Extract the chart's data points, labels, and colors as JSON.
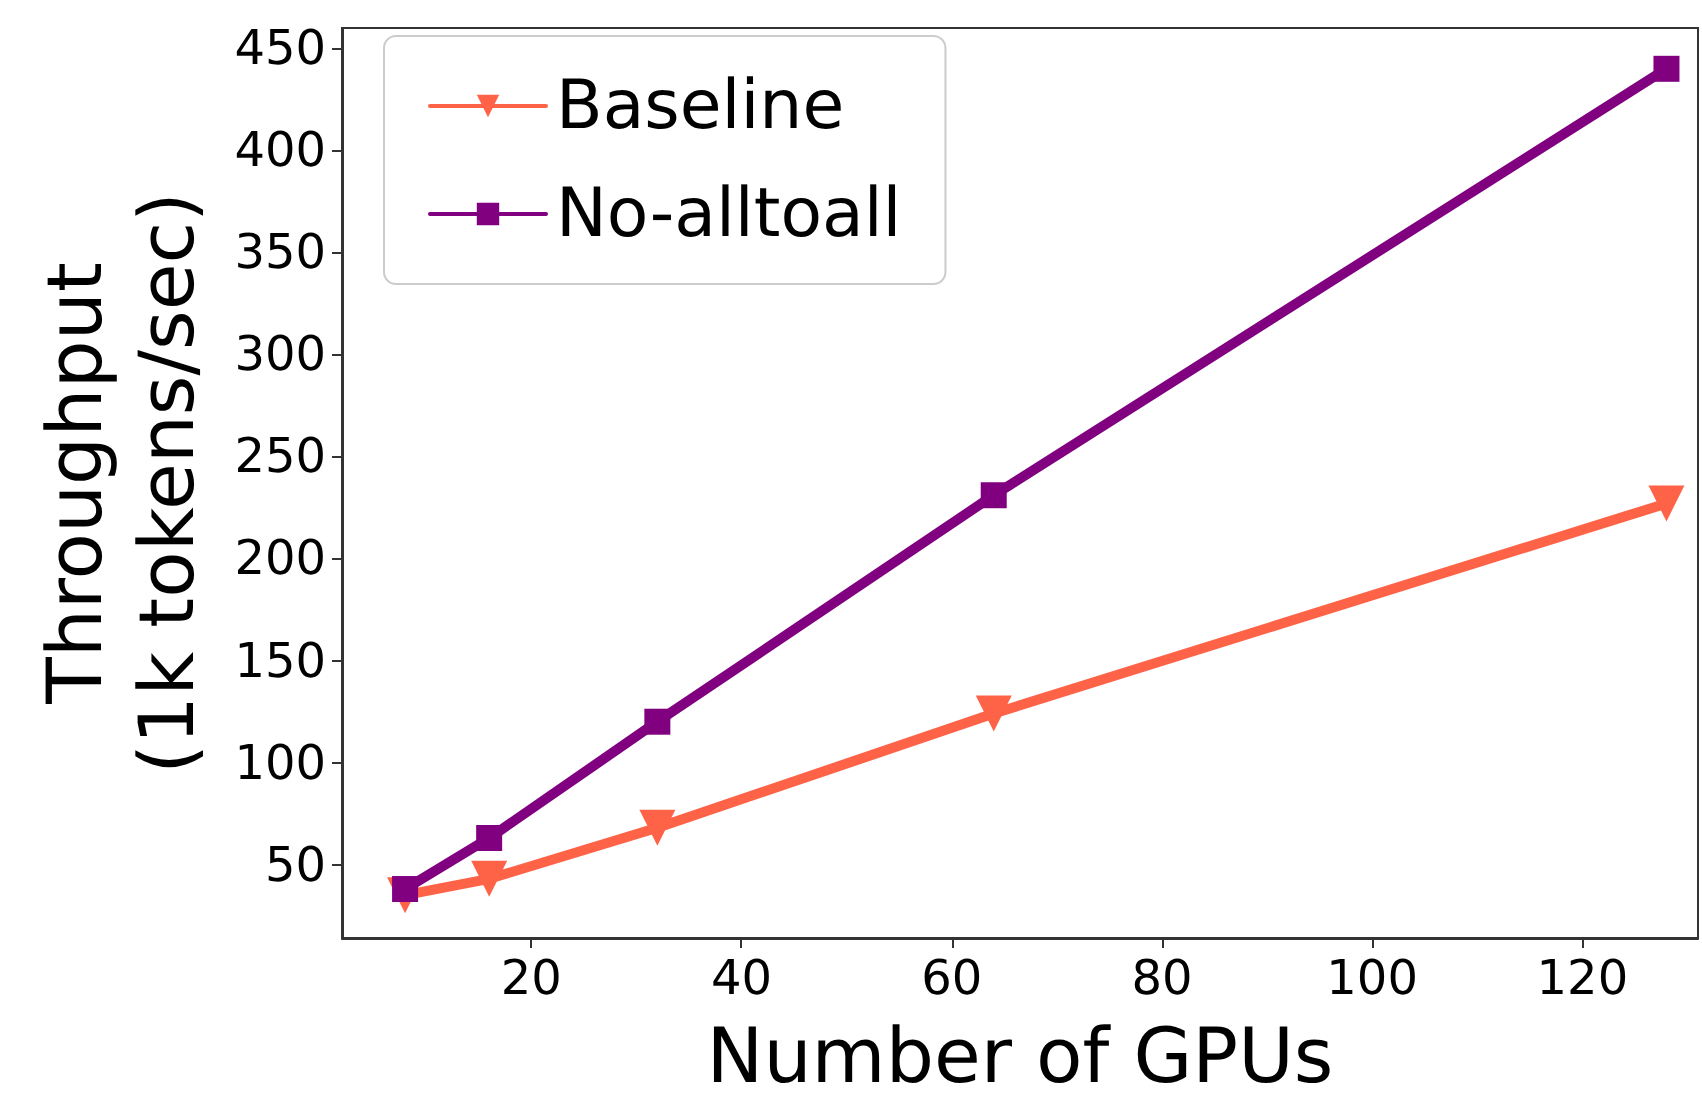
{
  "chart_data": {
    "type": "line",
    "xlabel": "Number of GPUs",
    "ylabel": "Throughput\n(1k tokens/sec)",
    "x": [
      8,
      16,
      32,
      64,
      128
    ],
    "series": [
      {
        "name": "Baseline",
        "color": "#ff6347",
        "marker": "triangle",
        "values": [
          35,
          43,
          68,
          124,
          227
        ]
      },
      {
        "name": "No-alltoall",
        "color": "#800080",
        "marker": "square",
        "values": [
          38,
          63,
          120,
          231,
          440
        ]
      }
    ],
    "xlim": [
      2,
      131
    ],
    "xticks": [
      20,
      40,
      60,
      80,
      100,
      120
    ],
    "ylim": [
      14,
      460
    ],
    "yticks": [
      50,
      100,
      150,
      200,
      250,
      300,
      350,
      400,
      450
    ],
    "grid": false,
    "legend": "top left",
    "line_style": "solid"
  }
}
